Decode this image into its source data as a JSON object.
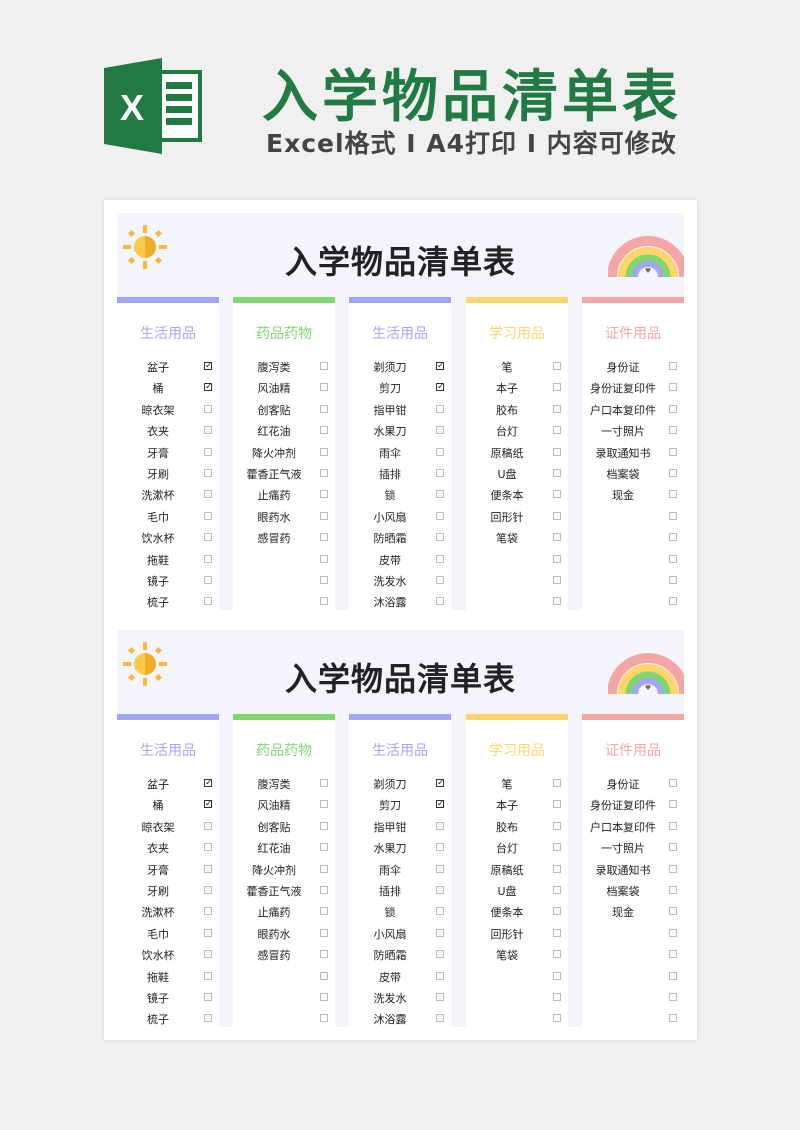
{
  "header": {
    "title": "入学物品清单表",
    "subtitle": "Excel格式 I A4打印 I 内容可修改",
    "logo_letter": "X"
  },
  "colors": {
    "brand": "#217a44",
    "blue": "#a3a6f5",
    "green": "#7ed86f",
    "yellow": "#ffd46a",
    "pink": "#f4a5a5",
    "panel": "#f4f4fd"
  },
  "sheet": {
    "title": "入学物品清单表",
    "columns": [
      {
        "category": "生活用品",
        "color": "#a3a6f5",
        "items": [
          {
            "name": "盆子",
            "checked": true
          },
          {
            "name": "桶",
            "checked": true
          },
          {
            "name": "晾衣架",
            "checked": false
          },
          {
            "name": "衣夹",
            "checked": false
          },
          {
            "name": "牙膏",
            "checked": false
          },
          {
            "name": "牙刷",
            "checked": false
          },
          {
            "name": "洗漱杯",
            "checked": false
          },
          {
            "name": "毛巾",
            "checked": false
          },
          {
            "name": "饮水杯",
            "checked": false
          },
          {
            "name": "拖鞋",
            "checked": false
          },
          {
            "name": "镜子",
            "checked": false
          },
          {
            "name": "梳子",
            "checked": false
          }
        ]
      },
      {
        "category": "药品药物",
        "color": "#7ed86f",
        "items": [
          {
            "name": "腹泻类",
            "checked": false
          },
          {
            "name": "风油精",
            "checked": false
          },
          {
            "name": "创客贴",
            "checked": false
          },
          {
            "name": "红花油",
            "checked": false
          },
          {
            "name": "降火冲剂",
            "checked": false
          },
          {
            "name": "藿香正气液",
            "checked": false
          },
          {
            "name": "止痛药",
            "checked": false
          },
          {
            "name": "眼药水",
            "checked": false
          },
          {
            "name": "感冒药",
            "checked": false
          },
          {
            "name": "",
            "checked": false
          },
          {
            "name": "",
            "checked": false
          },
          {
            "name": "",
            "checked": false
          }
        ]
      },
      {
        "category": "生活用品",
        "color": "#a3a6f5",
        "items": [
          {
            "name": "剃须刀",
            "checked": true
          },
          {
            "name": "剪刀",
            "checked": true
          },
          {
            "name": "指甲钳",
            "checked": false
          },
          {
            "name": "水果刀",
            "checked": false
          },
          {
            "name": "雨伞",
            "checked": false
          },
          {
            "name": "插排",
            "checked": false
          },
          {
            "name": "锁",
            "checked": false
          },
          {
            "name": "小风扇",
            "checked": false
          },
          {
            "name": "防晒霜",
            "checked": false
          },
          {
            "name": "皮带",
            "checked": false
          },
          {
            "name": "洗发水",
            "checked": false
          },
          {
            "name": "沐浴露",
            "checked": false
          }
        ]
      },
      {
        "category": "学习用品",
        "color": "#ffd46a",
        "items": [
          {
            "name": "笔",
            "checked": false
          },
          {
            "name": "本子",
            "checked": false
          },
          {
            "name": "胶布",
            "checked": false
          },
          {
            "name": "台灯",
            "checked": false
          },
          {
            "name": "原稿纸",
            "checked": false
          },
          {
            "name": "U盘",
            "checked": false
          },
          {
            "name": "便条本",
            "checked": false
          },
          {
            "name": "回形针",
            "checked": false
          },
          {
            "name": "笔袋",
            "checked": false
          },
          {
            "name": "",
            "checked": false
          },
          {
            "name": "",
            "checked": false
          },
          {
            "name": "",
            "checked": false
          }
        ]
      },
      {
        "category": "证件用品",
        "color": "#f4a5a5",
        "items": [
          {
            "name": "身份证",
            "checked": false
          },
          {
            "name": "身份证复印件",
            "checked": false
          },
          {
            "name": "户口本复印件",
            "checked": false
          },
          {
            "name": "一寸照片",
            "checked": false
          },
          {
            "name": "录取通知书",
            "checked": false
          },
          {
            "name": "档案袋",
            "checked": false
          },
          {
            "name": "现金",
            "checked": false
          },
          {
            "name": "",
            "checked": false
          },
          {
            "name": "",
            "checked": false
          },
          {
            "name": "",
            "checked": false
          },
          {
            "name": "",
            "checked": false
          },
          {
            "name": "",
            "checked": false
          }
        ]
      }
    ]
  }
}
